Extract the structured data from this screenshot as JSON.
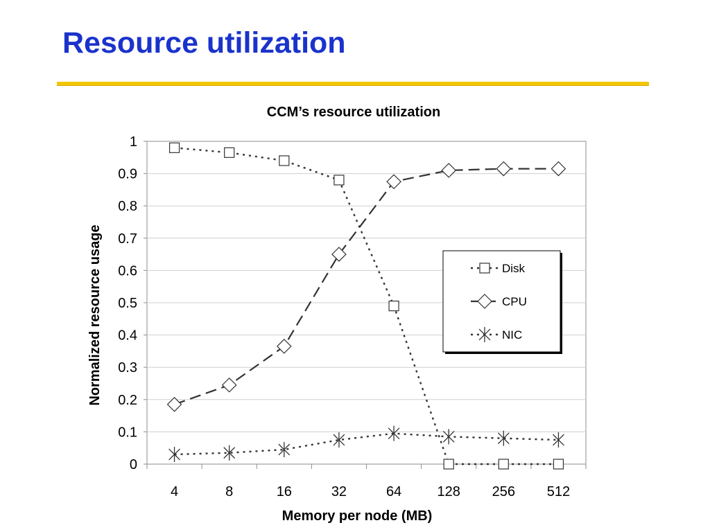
{
  "slide": {
    "title": "Resource utilization",
    "title_color": "#1a33cc",
    "rule_color": "#f2c700"
  },
  "chart_data": {
    "type": "line",
    "title": "CCM’s resource utilization",
    "xlabel": "Memory per node (MB)",
    "ylabel": "Normalized resource usage",
    "categories": [
      "4",
      "8",
      "16",
      "32",
      "64",
      "128",
      "256",
      "512"
    ],
    "ylim": [
      0,
      1
    ],
    "yticks": [
      "0",
      "0.1",
      "0.2",
      "0.3",
      "0.4",
      "0.5",
      "0.6",
      "0.7",
      "0.8",
      "0.9",
      "1"
    ],
    "grid": true,
    "legend": "right",
    "series": [
      {
        "name": "Disk",
        "marker": "square",
        "line_style": "dotted",
        "values": [
          0.98,
          0.965,
          0.94,
          0.88,
          0.49,
          0.0,
          0.0,
          0.0
        ]
      },
      {
        "name": "CPU",
        "marker": "diamond",
        "line_style": "dashed",
        "values": [
          0.185,
          0.245,
          0.365,
          0.65,
          0.875,
          0.91,
          0.915,
          0.915
        ]
      },
      {
        "name": "NIC",
        "marker": "asterisk",
        "line_style": "dotted",
        "values": [
          0.03,
          0.035,
          0.045,
          0.075,
          0.095,
          0.085,
          0.08,
          0.075
        ]
      }
    ]
  }
}
